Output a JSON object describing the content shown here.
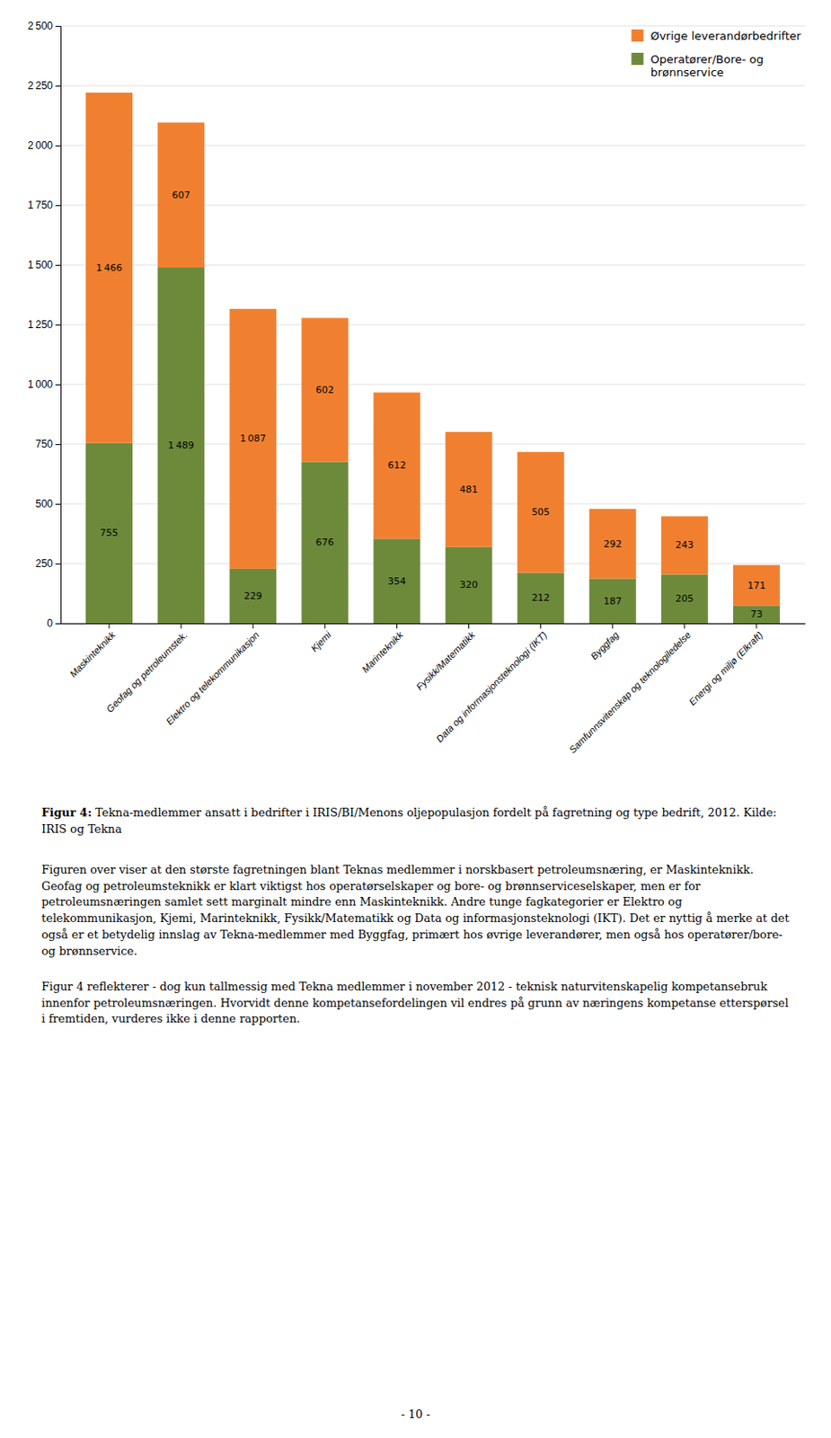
{
  "chart_data": {
    "type": "bar",
    "stacked": true,
    "title": "Figur 4: Tekna-medlemmer ansatt i bedrifter i IRIS/BI/Menons oljepopulasjon fordelt på fagretning og type bedrift, 2012. Kilde: IRIS og Tekna",
    "categories": [
      "Maskinteknikk",
      "Geofag og petroleumstek.",
      "Elektro og telekommunikasjon",
      "Kjemi",
      "Marinteknikk",
      "Fysikk/Matematikk",
      "Data og informasjonsteknologi (IKT)",
      "Byggfag",
      "Samfunnsvitenskap og teknologiledelse",
      "Energi og miljø (Elkraft)"
    ],
    "series": [
      {
        "name": "Operatører/Bore- og\nbrønnservice",
        "color": "#6d8a3b",
        "values": [
          755,
          1489,
          229,
          676,
          354,
          320,
          212,
          187,
          205,
          73
        ],
        "value_labels": [
          "755",
          "1 489",
          "229",
          "676",
          "354",
          "320",
          "212",
          "187",
          "205",
          "73"
        ]
      },
      {
        "name": "Øvrige leverandørbedrifter",
        "color": "#f08030",
        "values": [
          1466,
          607,
          1087,
          602,
          612,
          481,
          505,
          292,
          243,
          171
        ],
        "value_labels": [
          "1 466",
          "607",
          "1 087",
          "602",
          "612",
          "481",
          "505",
          "292",
          "243",
          "171"
        ]
      }
    ],
    "ylim": [
      0,
      2500
    ],
    "yticks": [
      0,
      250,
      500,
      750,
      {
        "value": 1000,
        "label": "1 000"
      },
      {
        "value": 1250,
        "label": "1 250"
      },
      {
        "value": 1500,
        "label": "1 500"
      },
      {
        "value": 1750,
        "label": "1 750"
      },
      {
        "value": 2000,
        "label": "2 000"
      },
      {
        "value": 2250,
        "label": "2 250"
      },
      {
        "value": 2500,
        "label": "2 500"
      }
    ],
    "grid": true,
    "legend": "upper right",
    "data_labels": true,
    "annotations": [
      "Figuren over viser at den største fagretningen blant Teknas medlemmer i norskbasert petroleumsnæring, er Maskinteknikk. Geofag og petroleumsteknikk er klart viktigst hos operatørselskaper og bore- og brønnserviceselskaper, men er for petroleumsnæringen samlet sett marginalt mindre enn Maskinteknikk. Andre tunge fagkategorier er Elektro og telekommunikasjon, Kjemi, Marinteknikk, Fysikk/Matematikk og Data og informasjonsteknologi (IKT). Det er nyttig å merke at det også er et betydelig innslag av Tekna-medlemmer med Byggfag, primært hos øvrige leverandører, men også hos operatører/bore- og brønnservice.",
      "Figur 4 reflekterer - dog kun tallmessig med Tekna medlemmer i november 2012 - teknisk naturvitenskapelig kompetansebruk innenfor petroleumsnæringen. Hvorvidt denne kompetansefordelingen vil endres på grunn av næringens kompetanse etterspørsel i fremtiden, vurderes ikke i denne rapporten.",
      "- 10 -"
    ]
  }
}
